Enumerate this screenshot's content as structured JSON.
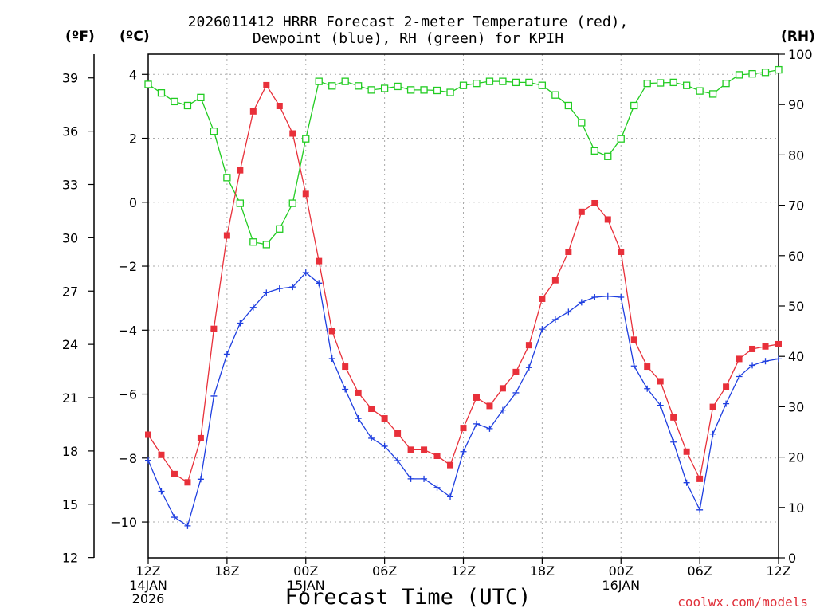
{
  "chart_data": {
    "type": "line",
    "title_line1": "2026011412 HRRR Forecast 2-meter Temperature (red),",
    "title_line2": "Dewpoint (blue), RH (green) for KPIH",
    "unit_labels": {
      "fahrenheit": "(ºF)",
      "celsius": "(ºC)",
      "rh": "(RH)"
    },
    "xlabel": "Forecast Time (UTC)",
    "credit": "coolwx.com/models",
    "x_ticks": [
      "12Z",
      "18Z",
      "00Z",
      "06Z",
      "12Z",
      "18Z",
      "00Z",
      "06Z",
      "12Z"
    ],
    "x_date_labels": [
      {
        "tick_index": 0,
        "lines": [
          "14JAN",
          "2026"
        ]
      },
      {
        "tick_index": 2,
        "lines": [
          "15JAN"
        ]
      },
      {
        "tick_index": 6,
        "lines": [
          "16JAN"
        ]
      }
    ],
    "x_range_hours": [
      0,
      48
    ],
    "y_left_celsius": {
      "ylim": [
        -11.12,
        4.63
      ],
      "ticks": [
        "4",
        "2",
        "0",
        "−2",
        "−4",
        "−6",
        "−8",
        "−10"
      ]
    },
    "y_left_fahrenheit": {
      "ticks": [
        "39",
        "36",
        "33",
        "30",
        "27",
        "24",
        "21",
        "18",
        "15",
        "12"
      ]
    },
    "y_right_rh": {
      "ylim": [
        0,
        100
      ],
      "ticks": [
        "100",
        "90",
        "80",
        "70",
        "60",
        "50",
        "40",
        "30",
        "20",
        "10",
        "0"
      ]
    },
    "grid": true,
    "colors": {
      "temperature": "#e8303a",
      "dewpoint": "#1f3fe0",
      "rh": "#22cc22"
    },
    "series": [
      {
        "name": "Temperature",
        "units": "C",
        "values": [
          -7.27,
          -7.9,
          -8.5,
          -8.76,
          -7.38,
          -3.96,
          -1.04,
          1.0,
          2.84,
          3.66,
          3.01,
          2.15,
          0.26,
          -1.84,
          -4.03,
          -5.14,
          -5.96,
          -6.46,
          -6.76,
          -7.23,
          -7.74,
          -7.74,
          -7.93,
          -8.22,
          -7.06,
          -6.11,
          -6.37,
          -5.82,
          -5.31,
          -4.47,
          -3.02,
          -2.44,
          -1.55,
          -0.3,
          -0.03,
          -0.54,
          -1.55,
          -4.3,
          -5.14,
          -5.6,
          -6.73,
          -7.8,
          -8.65,
          -6.4,
          -5.77,
          -4.9,
          -4.59,
          -4.51,
          -4.44
        ]
      },
      {
        "name": "Dewpoint",
        "units": "C",
        "values": [
          -8.07,
          -9.04,
          -9.85,
          -10.12,
          -8.66,
          -6.06,
          -4.75,
          -3.78,
          -3.29,
          -2.83,
          -2.7,
          -2.65,
          -2.2,
          -2.53,
          -4.89,
          -5.85,
          -6.76,
          -7.38,
          -7.63,
          -8.08,
          -8.65,
          -8.65,
          -8.92,
          -9.21,
          -7.8,
          -6.93,
          -7.08,
          -6.5,
          -5.96,
          -5.17,
          -3.97,
          -3.67,
          -3.43,
          -3.13,
          -2.97,
          -2.94,
          -2.97,
          -5.12,
          -5.83,
          -6.35,
          -7.5,
          -8.77,
          -9.62,
          -7.25,
          -6.3,
          -5.45,
          -5.1,
          -4.97,
          -4.9
        ]
      },
      {
        "name": "Relative Humidity",
        "units": "%",
        "values": [
          94,
          92.3,
          90.6,
          89.8,
          91.4,
          84.7,
          75.5,
          70.4,
          62.7,
          62.2,
          65.3,
          70.4,
          83.2,
          94.6,
          93.7,
          94.6,
          93.7,
          92.9,
          93.2,
          93.6,
          92.9,
          92.9,
          92.8,
          92.4,
          93.8,
          94.2,
          94.6,
          94.6,
          94.4,
          94.4,
          93.8,
          91.9,
          89.8,
          86.4,
          80.8,
          79.7,
          83.2,
          89.8,
          94.2,
          94.3,
          94.4,
          93.8,
          92.7,
          92.1,
          94.2,
          95.9,
          96.1,
          96.4,
          96.9
        ]
      }
    ]
  }
}
